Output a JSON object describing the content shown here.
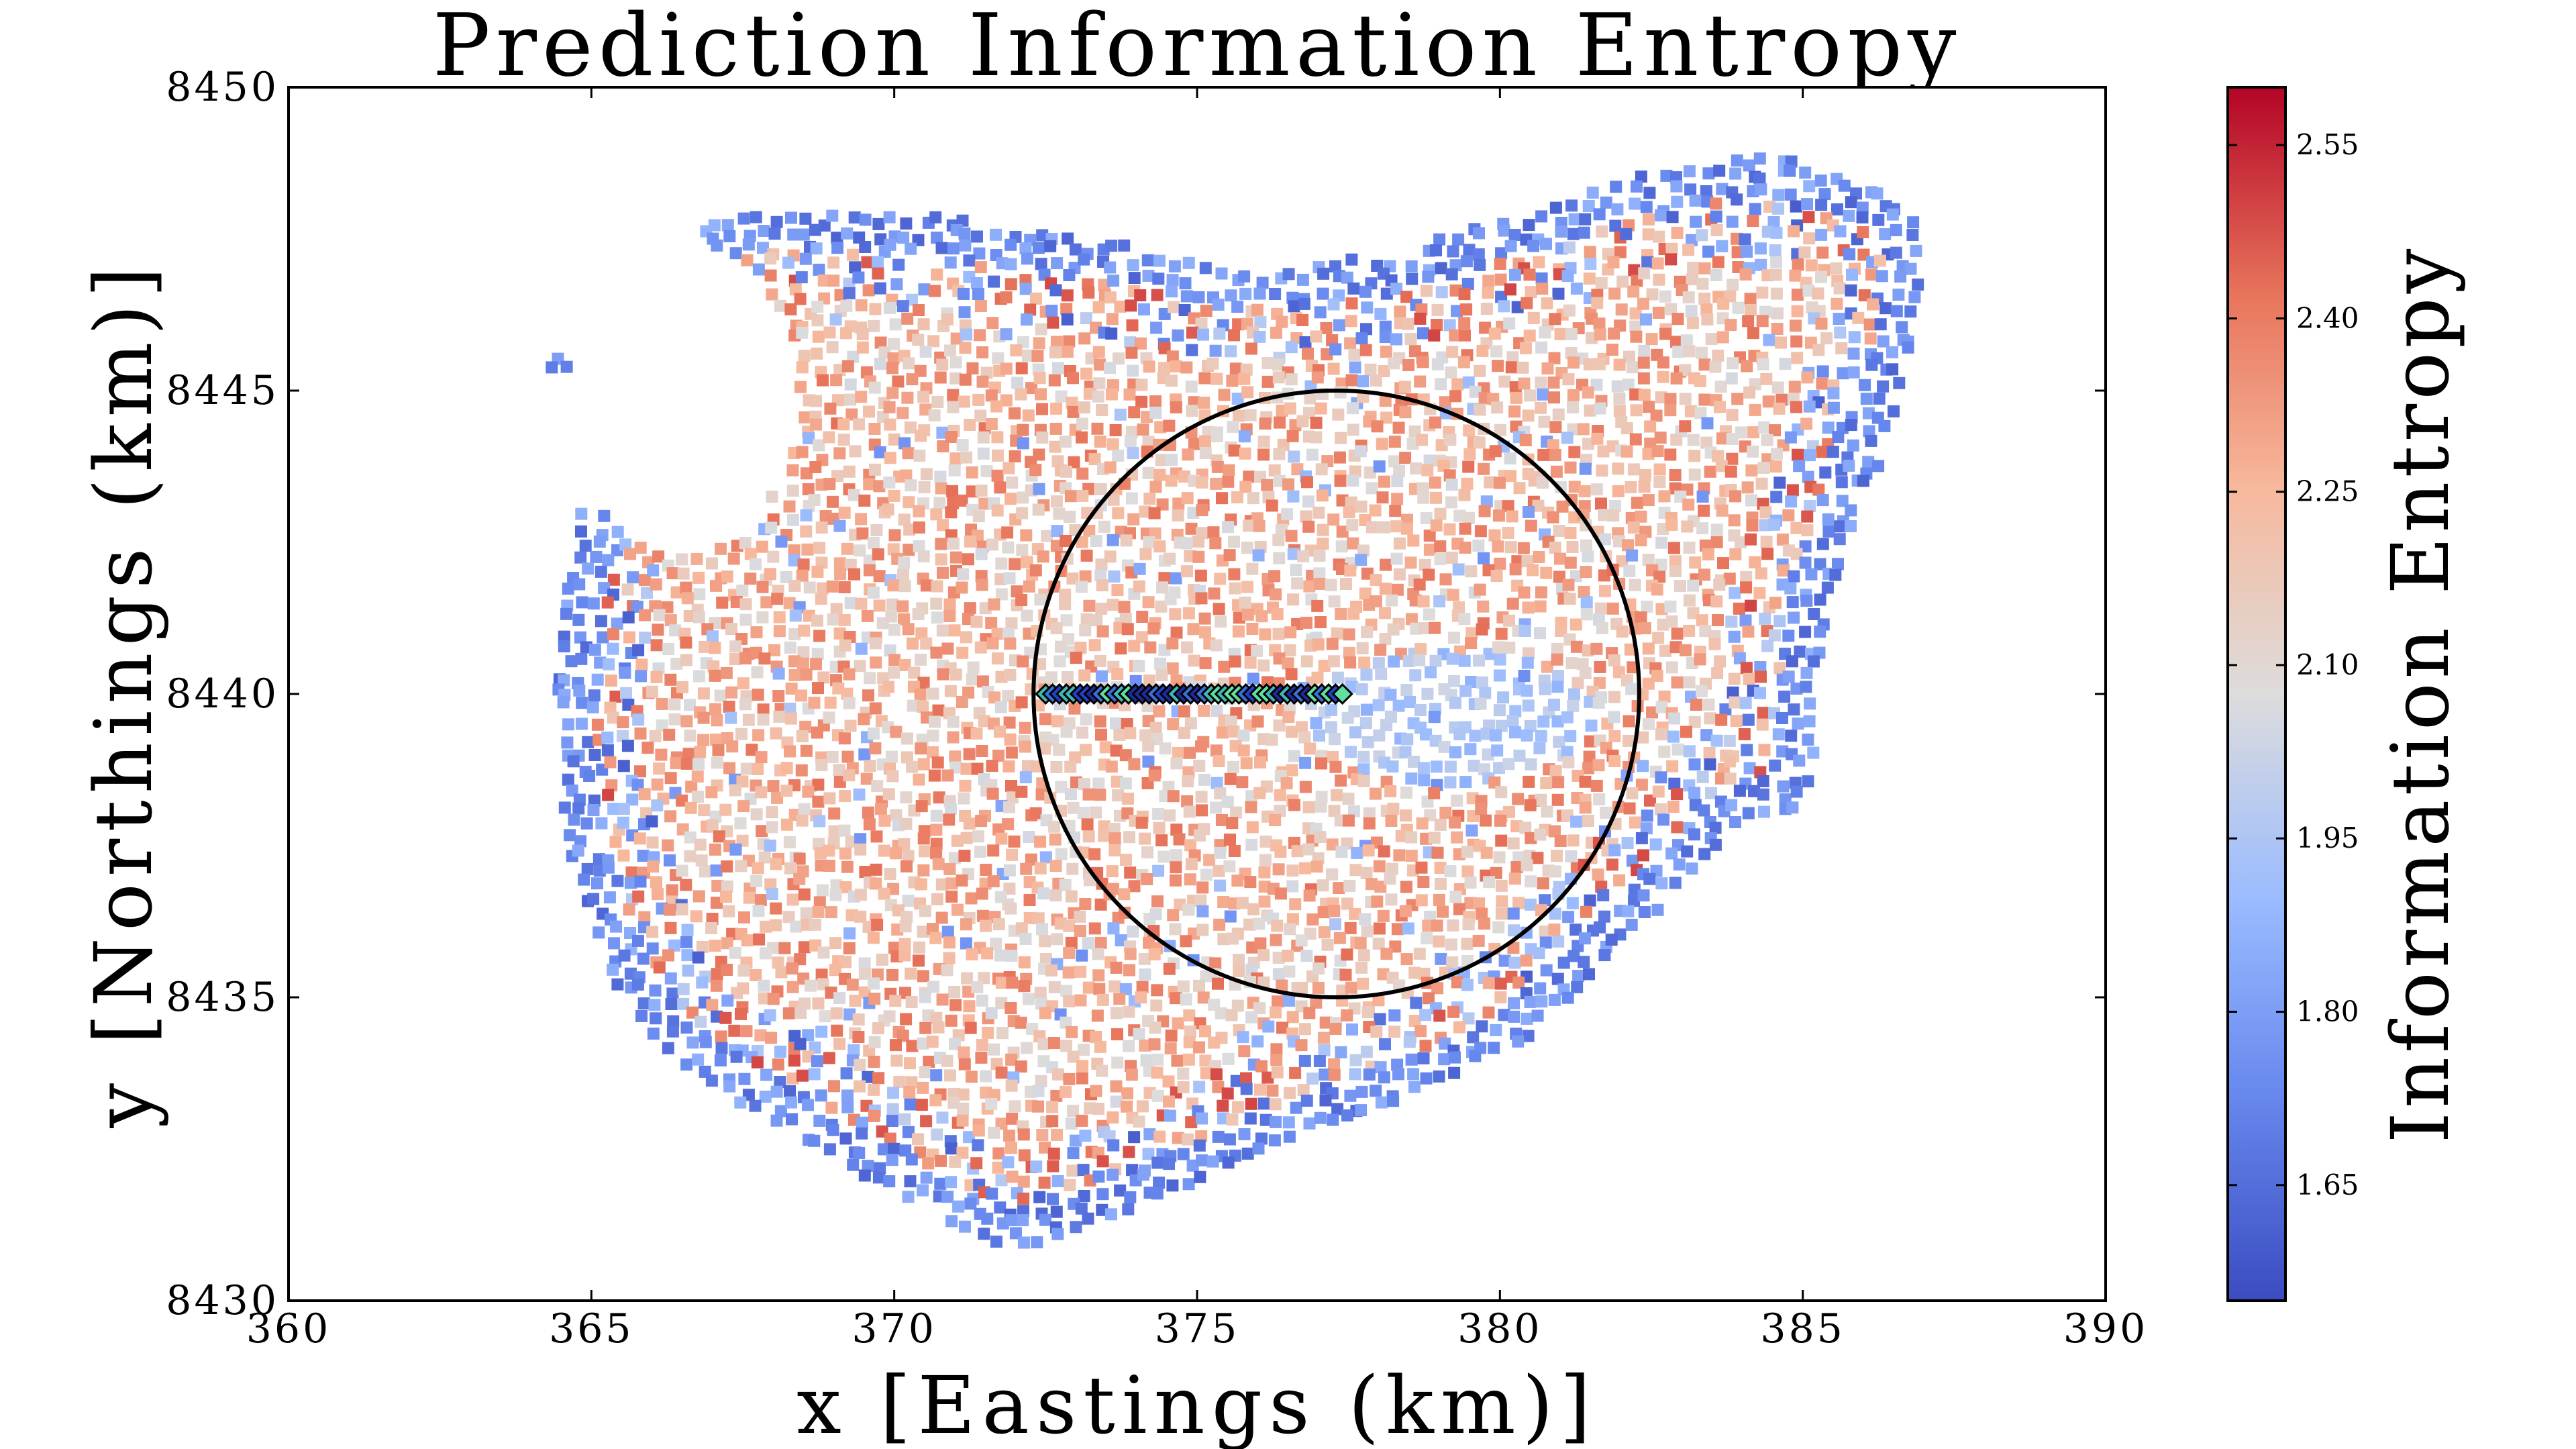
{
  "chart_data": {
    "type": "scatter",
    "title": "Prediction Information Entropy",
    "xlabel": "x [Eastings (km)]",
    "ylabel": "y [Northings (km)]",
    "xlim": [
      360,
      390
    ],
    "ylim": [
      8430,
      8450
    ],
    "xticks": [
      "360",
      "365",
      "370",
      "375",
      "380",
      "385",
      "390"
    ],
    "yticks": [
      "8430",
      "8435",
      "8440",
      "8445",
      "8450"
    ],
    "grid": false,
    "colorbar": {
      "label": "Information Entropy",
      "range": [
        1.55,
        2.6
      ],
      "ticks": [
        "1.65",
        "1.80",
        "1.95",
        "2.10",
        "2.25",
        "2.40",
        "2.55"
      ],
      "colormap": "coolwarm",
      "low_color": "#3b4cc0",
      "mid_color": "#dddcdc",
      "high_color": "#b40426"
    },
    "region": {
      "description_values_in_data_units": true,
      "outline": [
        [
          364.3,
          8445.4
        ],
        [
          365.6,
          8446.6
        ],
        [
          367.0,
          8447.8
        ],
        [
          368.0,
          8448.0
        ],
        [
          370.5,
          8447.9
        ],
        [
          373.0,
          8447.6
        ],
        [
          375.5,
          8447.0
        ],
        [
          378.0,
          8447.2
        ],
        [
          380.0,
          8447.8
        ],
        [
          382.5,
          8448.6
        ],
        [
          384.5,
          8448.9
        ],
        [
          386.2,
          8448.4
        ],
        [
          387.0,
          8447.7
        ],
        [
          386.8,
          8445.6
        ],
        [
          386.2,
          8443.6
        ],
        [
          385.4,
          8441.6
        ],
        [
          385.1,
          8438.2
        ],
        [
          384.0,
          8437.9
        ],
        [
          382.0,
          8435.8
        ],
        [
          380.5,
          8434.3
        ],
        [
          378.5,
          8433.3
        ],
        [
          376.5,
          8432.6
        ],
        [
          374.0,
          8431.5
        ],
        [
          372.0,
          8430.8
        ],
        [
          370.5,
          8431.5
        ],
        [
          368.5,
          8432.6
        ],
        [
          366.3,
          8434.0
        ],
        [
          365.2,
          8435.5
        ],
        [
          364.6,
          8437.5
        ],
        [
          364.4,
          8439.6
        ],
        [
          364.6,
          8441.8
        ],
        [
          364.9,
          8443.4
        ],
        [
          364.3,
          8445.4
        ]
      ],
      "holes": [
        {
          "center": [
            366.5,
            8444.9
          ],
          "radius": [
            1.9,
            2.6
          ]
        },
        {
          "center": [
            370.4,
            8447.0
          ],
          "radius": [
            0.3,
            0.3
          ]
        },
        {
          "center": [
            371.8,
            8446.3
          ],
          "radius": [
            0.25,
            0.2
          ]
        }
      ],
      "edge_entropy": 1.62,
      "interior_entropy": 2.22,
      "low_entropy_zone": {
        "center": [
          379.2,
          8439.6
        ],
        "radius": [
          2.4,
          1.1
        ],
        "entropy": 1.95
      }
    },
    "circle": {
      "center": [
        377.3,
        8440.0
      ],
      "radius": 5.0,
      "color": "#000000"
    },
    "transect": {
      "y": 8440.0,
      "x_start": 372.5,
      "x_end": 377.4,
      "marker_colors": [
        "#1f2a99",
        "#2540c8",
        "#3a6fd8",
        "#3fb8b5",
        "#5fe0a0"
      ]
    }
  }
}
